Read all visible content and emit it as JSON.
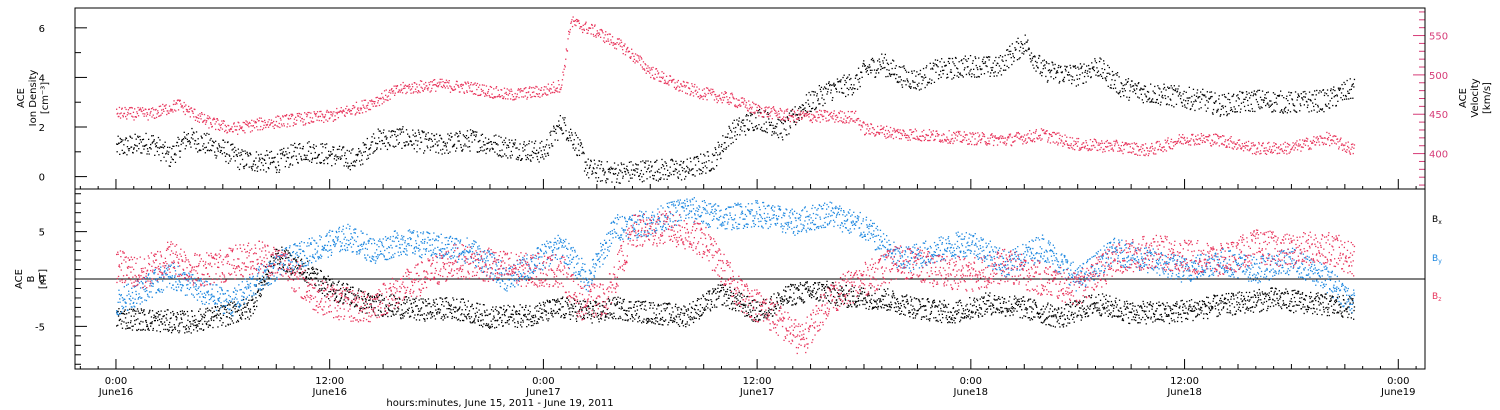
{
  "chart_data": [
    {
      "type": "scatter",
      "panel": "top",
      "ylabel_lines": [
        "ACE",
        "Ion Density",
        "[cm⁻³]"
      ],
      "ylabel2_lines": [
        "ACE",
        "Velocity",
        "[km/s]"
      ],
      "ylim": [
        -0.5,
        6.8
      ],
      "y2lim": [
        355,
        585
      ],
      "yticks": [
        0,
        2,
        4,
        6
      ],
      "y2ticks": [
        400,
        450,
        500,
        550
      ],
      "series": [
        {
          "color": "#000000",
          "x": [
            0.0,
            2.0,
            3.0,
            4.0,
            6.0,
            7.0,
            9.0,
            10.5,
            12.0,
            13.5,
            14.5,
            16.0,
            18.0,
            20.0,
            22.0,
            24.0,
            25.0,
            25.8,
            26.5,
            27.5,
            28.5,
            30.0,
            32.0,
            33.5,
            34.5,
            36.0,
            37.5,
            38.5,
            40.0,
            41.5,
            42.0,
            43.0,
            44.0,
            45.0,
            46.0,
            48.0,
            49.5,
            50.0,
            51.0,
            52.0,
            54.0,
            55.0,
            56.5,
            58.0,
            60.0,
            61.0,
            62.0,
            63.0,
            64.0,
            66.0,
            68.0,
            69.5
          ],
          "y": [
            1.2,
            1.4,
            0.8,
            1.6,
            1.1,
            0.7,
            0.6,
            1.1,
            0.9,
            0.7,
            1.5,
            1.6,
            1.3,
            1.5,
            1.2,
            1.0,
            2.2,
            1.4,
            0.3,
            0.2,
            0.2,
            0.3,
            0.3,
            0.7,
            1.8,
            2.4,
            1.9,
            2.8,
            3.5,
            3.8,
            4.3,
            4.6,
            4.1,
            3.9,
            4.3,
            4.5,
            4.4,
            4.8,
            5.4,
            4.3,
            4.1,
            4.5,
            3.6,
            3.4,
            3.2,
            3.1,
            2.9,
            3.0,
            3.1,
            3.0,
            3.1,
            3.6
          ],
          "spread": 0.45
        },
        {
          "color": "#e8365d",
          "axis": "right",
          "x": [
            0.0,
            2.0,
            3.5,
            5.0,
            6.5,
            8.0,
            10.0,
            12.0,
            14.0,
            16.0,
            18.0,
            20.0,
            22.0,
            24.0,
            25.0,
            25.5,
            27.0,
            28.5,
            30.0,
            31.5,
            33.0,
            34.5,
            36.0,
            38.0,
            40.0,
            41.5,
            42.0,
            44.0,
            46.0,
            48.0,
            50.0,
            52.0,
            54.0,
            56.0,
            58.0,
            60.0,
            62.0,
            64.0,
            66.0,
            68.0,
            69.5
          ],
          "y": [
            452,
            451,
            463,
            442,
            432,
            438,
            444,
            448,
            462,
            483,
            488,
            484,
            475,
            480,
            488,
            568,
            555,
            535,
            505,
            487,
            477,
            470,
            456,
            448,
            448,
            447,
            432,
            426,
            423,
            420,
            418,
            425,
            412,
            410,
            405,
            420,
            418,
            407,
            408,
            420,
            405
          ],
          "spread": 8
        }
      ]
    },
    {
      "type": "scatter",
      "panel": "bottom",
      "ylabel_lines": [
        "ACE",
        "B",
        "[nT]"
      ],
      "ylim": [
        -9.5,
        9.5
      ],
      "yticks": [
        -5,
        0,
        5
      ],
      "series": [
        {
          "name": "B",
          "subscript": "x",
          "color": "#000000",
          "x": [
            0.0,
            2.0,
            4.0,
            6.0,
            7.5,
            9.0,
            10.0,
            11.0,
            12.0,
            13.0,
            14.0,
            15.5,
            17.0,
            19.0,
            21.0,
            23.0,
            25.0,
            27.0,
            28.0,
            30.0,
            32.0,
            34.0,
            36.0,
            38.0,
            39.5,
            41.0,
            43.0,
            45.0,
            47.0,
            49.0,
            51.0,
            53.0,
            55.0,
            57.0,
            59.0,
            61.0,
            63.0,
            65.0,
            67.0,
            69.5
          ],
          "y": [
            -4.0,
            -4.3,
            -4.5,
            -3.8,
            -3.0,
            2.5,
            1.5,
            0.5,
            -1.0,
            -1.5,
            -2.5,
            -2.8,
            -3.2,
            -3.0,
            -4.0,
            -3.8,
            -3.0,
            -3.5,
            -3.0,
            -3.5,
            -3.8,
            -1.5,
            -3.5,
            -1.5,
            -1.2,
            -1.8,
            -2.0,
            -3.0,
            -3.5,
            -2.5,
            -3.0,
            -4.0,
            -2.5,
            -3.5,
            -3.5,
            -3.0,
            -2.5,
            -2.0,
            -2.5,
            -3.0
          ],
          "spread": 1.2
        },
        {
          "name": "B",
          "subscript": "y",
          "color": "#1e88e0",
          "x": [
            0.0,
            1.5,
            3.0,
            5.0,
            6.5,
            8.0,
            9.5,
            11.5,
            13.0,
            14.5,
            16.0,
            18.0,
            20.0,
            22.0,
            24.0,
            25.0,
            26.5,
            28.0,
            30.0,
            32.0,
            34.0,
            36.0,
            38.0,
            40.0,
            42.0,
            44.0,
            46.0,
            48.0,
            50.0,
            52.0,
            54.0,
            56.0,
            58.0,
            60.0,
            62.0,
            64.0,
            66.0,
            68.0,
            69.5
          ],
          "y": [
            -2.5,
            -1.0,
            0.5,
            -1.5,
            -2.5,
            0.0,
            2.0,
            3.5,
            4.5,
            3.0,
            4.0,
            3.5,
            3.0,
            0.0,
            2.5,
            3.5,
            0.0,
            5.5,
            6.0,
            7.5,
            6.5,
            7.0,
            6.0,
            7.0,
            5.5,
            2.0,
            3.0,
            4.0,
            1.5,
            3.5,
            0.0,
            3.0,
            2.0,
            1.0,
            2.0,
            1.0,
            2.0,
            0.0,
            -2.5
          ],
          "spread": 1.4
        },
        {
          "name": "B",
          "subscript": "z",
          "color": "#e8365d",
          "x": [
            0.0,
            1.5,
            3.0,
            4.5,
            6.0,
            8.0,
            9.5,
            11.0,
            12.5,
            14.0,
            15.5,
            17.0,
            19.0,
            21.0,
            23.0,
            25.0,
            26.0,
            27.5,
            29.0,
            31.0,
            33.0,
            35.0,
            37.0,
            38.5,
            40.0,
            42.0,
            44.0,
            46.0,
            48.0,
            50.0,
            52.0,
            54.0,
            56.0,
            58.0,
            60.0,
            62.0,
            64.0,
            66.0,
            68.0,
            69.5
          ],
          "y": [
            1.5,
            0.5,
            2.5,
            1.0,
            1.5,
            2.5,
            1.5,
            -1.5,
            -2.5,
            -3.0,
            -1.5,
            0.0,
            2.0,
            1.5,
            1.0,
            1.0,
            -2.5,
            -2.0,
            5.0,
            5.5,
            4.0,
            -1.5,
            -4.0,
            -6.5,
            -2.0,
            0.0,
            2.0,
            1.0,
            0.5,
            1.5,
            0.0,
            -1.0,
            2.0,
            3.0,
            2.5,
            2.0,
            3.5,
            3.0,
            3.5,
            2.0
          ],
          "spread": 1.8
        }
      ]
    }
  ],
  "xaxis": {
    "start_date": "2011-06-15",
    "xlim": [
      -2.3,
      73.5
    ],
    "tick_hours": [
      0,
      12,
      24,
      36,
      48,
      60,
      72
    ],
    "tick_labels": [
      {
        "time": "0:00",
        "date": "June16"
      },
      {
        "time": "12:00",
        "date": "June16"
      },
      {
        "time": "0:00",
        "date": "June17"
      },
      {
        "time": "12:00",
        "date": "June17"
      },
      {
        "time": "0:00",
        "date": "June18"
      },
      {
        "time": "12:00",
        "date": "June18"
      },
      {
        "time": "0:00",
        "date": "June19"
      }
    ],
    "xlabel": "hours:minutes, June 15, 2011 - June 19, 2011"
  },
  "colors": {
    "density": "#000000",
    "velocity": "#e8365d",
    "bx": "#000000",
    "by": "#1e88e0",
    "bz": "#e8365d",
    "right_axis": "#d63b77"
  }
}
